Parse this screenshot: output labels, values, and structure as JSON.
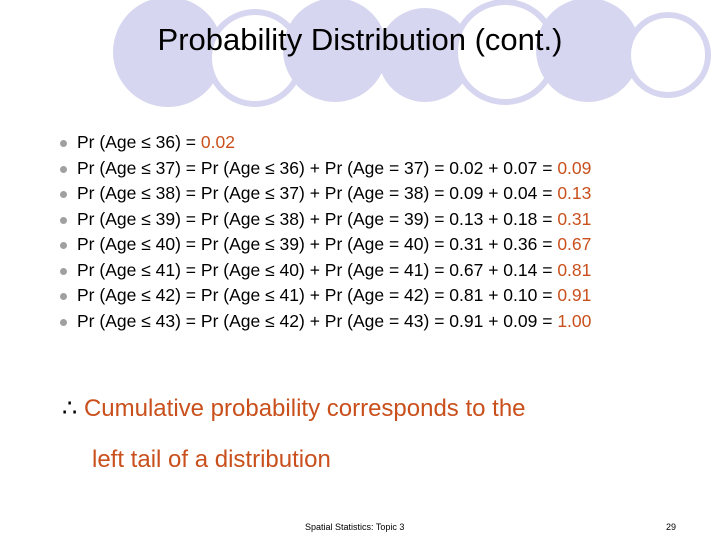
{
  "title": "Probability Distribution (cont.)",
  "items": [
    {
      "expression": "Pr (Age ≤ 36) =",
      "result": "0.02"
    },
    {
      "expression": "Pr (Age ≤ 37) = Pr (Age ≤ 36) + Pr (Age = 37) = 0.02 + 0.07 =",
      "result": "0.09"
    },
    {
      "expression": "Pr (Age ≤ 38) = Pr (Age ≤ 37) + Pr (Age = 38) = 0.09 + 0.04 =",
      "result": "0.13"
    },
    {
      "expression": "Pr (Age ≤ 39) = Pr (Age ≤ 38) + Pr (Age = 39) = 0.13 + 0.18 =",
      "result": "0.31"
    },
    {
      "expression": "Pr (Age ≤ 40) = Pr (Age ≤ 39) + Pr (Age = 40) = 0.31 + 0.36 =",
      "result": "0.67"
    },
    {
      "expression": "Pr (Age ≤ 41) = Pr (Age ≤ 40) + Pr (Age = 41) = 0.67 + 0.14 =",
      "result": "0.81"
    },
    {
      "expression": "Pr (Age ≤ 42) = Pr (Age ≤ 41) + Pr (Age = 42) = 0.81 + 0.10 =",
      "result": "0.91"
    },
    {
      "expression": "Pr (Age ≤ 43) = Pr (Age ≤ 42) + Pr (Age = 43) = 0.91 + 0.09 =",
      "result": "1.00"
    }
  ],
  "conclusion": {
    "symbol": "∴",
    "lines": [
      "Cumulative probability corresponds to the",
      "left tail of a distribution"
    ]
  },
  "footer": "Spatial Statistics: Topic 3",
  "page_number": "29"
}
